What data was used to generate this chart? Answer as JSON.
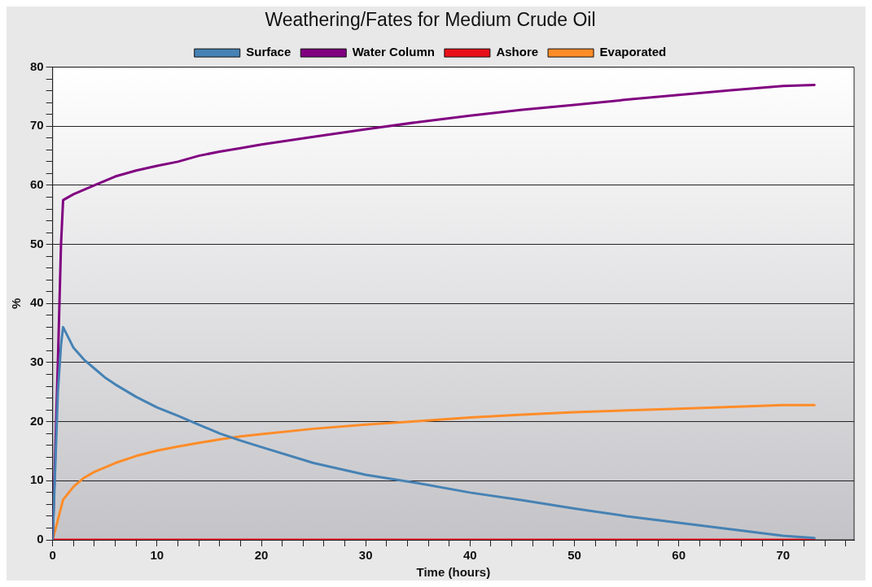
{
  "chart_data": {
    "type": "line",
    "title": "Weathering/Fates for Medium Crude Oil",
    "xlabel": "Time (hours)",
    "ylabel": "%",
    "xlim": [
      0,
      76.8
    ],
    "ylim": [
      0,
      80
    ],
    "xticks": [
      0,
      {
        "value": 2,
        "label": null
      },
      {
        "value": 4,
        "label": null
      },
      {
        "value": 6,
        "label": null
      },
      {
        "value": 8,
        "label": null
      },
      10,
      {
        "value": 12,
        "label": null
      },
      {
        "value": 14,
        "label": null
      },
      {
        "value": 16,
        "label": null
      },
      {
        "value": 18,
        "label": null
      },
      20,
      {
        "value": 22,
        "label": null
      },
      {
        "value": 24,
        "label": null
      },
      {
        "value": 26,
        "label": null
      },
      {
        "value": 28,
        "label": null
      },
      30,
      {
        "value": 32,
        "label": null
      },
      {
        "value": 34,
        "label": null
      },
      {
        "value": 36,
        "label": null
      },
      {
        "value": 38,
        "label": null
      },
      40,
      {
        "value": 42,
        "label": null
      },
      {
        "value": 44,
        "label": null
      },
      {
        "value": 46,
        "label": null
      },
      {
        "value": 48,
        "label": null
      },
      50,
      {
        "value": 52,
        "label": null
      },
      {
        "value": 54,
        "label": null
      },
      {
        "value": 56,
        "label": null
      },
      {
        "value": 58,
        "label": null
      },
      60,
      {
        "value": 62,
        "label": null
      },
      {
        "value": 64,
        "label": null
      },
      {
        "value": 66,
        "label": null
      },
      {
        "value": 68,
        "label": null
      },
      70,
      {
        "value": 72,
        "label": null
      },
      {
        "value": 74,
        "label": null
      },
      {
        "value": 76,
        "label": null
      }
    ],
    "yticks": [
      0,
      {
        "value": 2,
        "label": null
      },
      {
        "value": 4,
        "label": null
      },
      {
        "value": 6,
        "label": null
      },
      {
        "value": 8,
        "label": null
      },
      10,
      {
        "value": 12,
        "label": null
      },
      {
        "value": 14,
        "label": null
      },
      {
        "value": 16,
        "label": null
      },
      {
        "value": 18,
        "label": null
      },
      20,
      {
        "value": 22,
        "label": null
      },
      {
        "value": 24,
        "label": null
      },
      {
        "value": 26,
        "label": null
      },
      {
        "value": 28,
        "label": null
      },
      30,
      {
        "value": 32,
        "label": null
      },
      {
        "value": 34,
        "label": null
      },
      {
        "value": 36,
        "label": null
      },
      {
        "value": 38,
        "label": null
      },
      40,
      {
        "value": 42,
        "label": null
      },
      {
        "value": 44,
        "label": null
      },
      {
        "value": 46,
        "label": null
      },
      {
        "value": 48,
        "label": null
      },
      50,
      {
        "value": 52,
        "label": null
      },
      {
        "value": 54,
        "label": null
      },
      {
        "value": 56,
        "label": null
      },
      {
        "value": 58,
        "label": null
      },
      60,
      {
        "value": 62,
        "label": null
      },
      {
        "value": 64,
        "label": null
      },
      {
        "value": 66,
        "label": null
      },
      {
        "value": 68,
        "label": null
      },
      70,
      {
        "value": 72,
        "label": null
      },
      {
        "value": 74,
        "label": null
      },
      {
        "value": 76,
        "label": null
      },
      {
        "value": 78,
        "label": null
      },
      80
    ],
    "grid": "y",
    "legend": "top",
    "marker": "none",
    "line_style": "solid",
    "series": [
      {
        "name": "Surface",
        "color": "#4682b4",
        "x": [
          0,
          0.5,
          0.8,
          1,
          2,
          3,
          4,
          5,
          6,
          8,
          10,
          12,
          14,
          16,
          18,
          20,
          25,
          30,
          35,
          40,
          45,
          50,
          55,
          60,
          65,
          70,
          73
        ],
        "values": [
          0,
          25,
          33,
          36,
          32.5,
          30.5,
          29,
          27.5,
          26.3,
          24.2,
          22.4,
          21,
          19.5,
          18,
          16.8,
          15.7,
          13,
          11,
          9.6,
          8,
          6.7,
          5.3,
          4,
          2.9,
          1.8,
          0.7,
          0.3
        ]
      },
      {
        "name": "Water Column",
        "color": "#800080",
        "x": [
          0,
          0.5,
          0.8,
          1,
          2,
          4,
          6,
          8,
          10,
          12,
          14,
          16,
          18,
          20,
          25,
          30,
          35,
          40,
          45,
          50,
          55,
          60,
          65,
          70,
          73
        ],
        "values": [
          0,
          30,
          50,
          57.5,
          58.5,
          60,
          61.5,
          62.5,
          63.3,
          64,
          65,
          65.7,
          66.3,
          66.9,
          68.2,
          69.5,
          70.7,
          71.8,
          72.8,
          73.6,
          74.5,
          75.3,
          76.1,
          76.8,
          77
        ]
      },
      {
        "name": "Ashore",
        "color": "#e8111a",
        "x": [
          0,
          73
        ],
        "values": [
          0,
          0
        ]
      },
      {
        "name": "Evaporated",
        "color": "#ff8c28",
        "x": [
          0,
          1,
          2,
          3,
          4,
          6,
          8,
          10,
          12,
          14,
          16,
          18,
          20,
          25,
          30,
          35,
          40,
          45,
          50,
          55,
          60,
          65,
          70,
          73
        ],
        "values": [
          0,
          6.8,
          9,
          10.5,
          11.5,
          13,
          14.2,
          15.1,
          15.8,
          16.4,
          17,
          17.5,
          17.9,
          18.8,
          19.5,
          20.1,
          20.7,
          21.2,
          21.6,
          21.9,
          22.2,
          22.5,
          22.8,
          22.8
        ]
      }
    ]
  }
}
